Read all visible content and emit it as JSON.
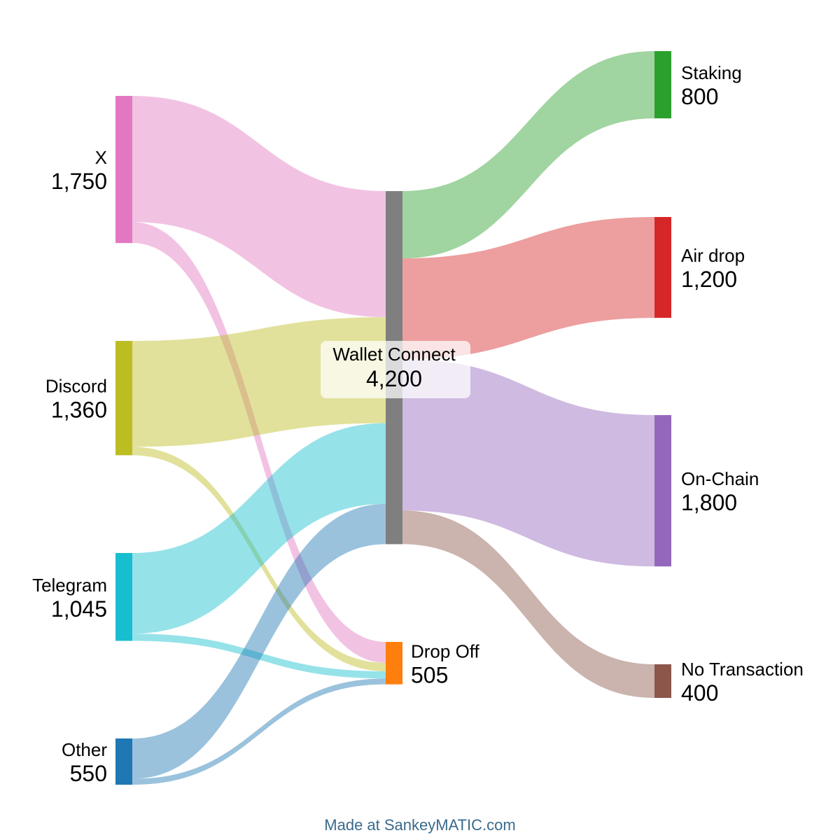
{
  "chart_data": {
    "type": "sankey",
    "nodes": [
      {
        "id": "x",
        "name": "X",
        "value": "1,750",
        "color": "#e377c2"
      },
      {
        "id": "discord",
        "name": "Discord",
        "value": "1,360",
        "color": "#bcbd22"
      },
      {
        "id": "telegram",
        "name": "Telegram",
        "value": "1,045",
        "color": "#17becf"
      },
      {
        "id": "other",
        "name": "Other",
        "value": "550",
        "color": "#1f77b4"
      },
      {
        "id": "wallet",
        "name": "Wallet Connect",
        "value": "4,200",
        "color": "#7f7f7f"
      },
      {
        "id": "dropoff",
        "name": "Drop Off",
        "value": "505",
        "color": "#ff7f0e"
      },
      {
        "id": "staking",
        "name": "Staking",
        "value": "800",
        "color": "#2ca02c"
      },
      {
        "id": "airdrop",
        "name": "Air drop",
        "value": "1,200",
        "color": "#d62728"
      },
      {
        "id": "onchain",
        "name": "On-Chain",
        "value": "1,800",
        "color": "#9467bd"
      },
      {
        "id": "notx",
        "name": "No Transaction",
        "value": "400",
        "color": "#8c564b"
      }
    ],
    "flows": [
      {
        "from": "x",
        "to": "wallet",
        "value": 1500
      },
      {
        "from": "x",
        "to": "dropoff",
        "value": 250
      },
      {
        "from": "discord",
        "to": "wallet",
        "value": 1260
      },
      {
        "from": "discord",
        "to": "dropoff",
        "value": 100
      },
      {
        "from": "telegram",
        "to": "wallet",
        "value": 960
      },
      {
        "from": "telegram",
        "to": "dropoff",
        "value": 85
      },
      {
        "from": "other",
        "to": "wallet",
        "value": 480
      },
      {
        "from": "other",
        "to": "dropoff",
        "value": 70
      },
      {
        "from": "wallet",
        "to": "staking",
        "value": 800
      },
      {
        "from": "wallet",
        "to": "airdrop",
        "value": 1200
      },
      {
        "from": "wallet",
        "to": "onchain",
        "value": 1800
      },
      {
        "from": "wallet",
        "to": "notx",
        "value": 400
      }
    ]
  },
  "footer": {
    "credit": "Made at SankeyMATIC.com"
  }
}
